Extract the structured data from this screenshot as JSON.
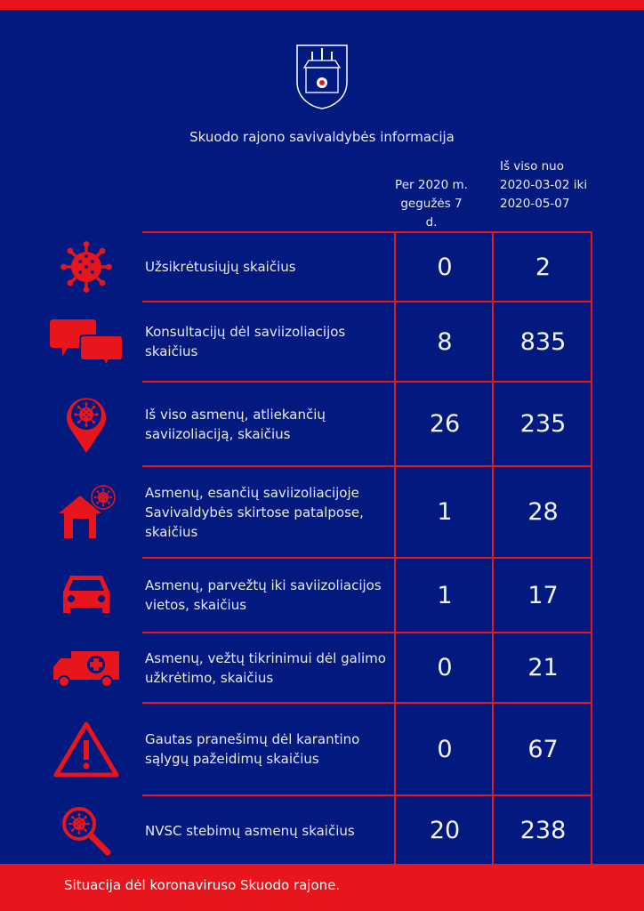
{
  "header": {
    "title": "Skuodo rajono savivaldybės informacija",
    "col1": "Per 2020 m. gegužės 7 d.",
    "col2_line1": "Iš viso nuo",
    "col2_line2": "2020-03-02 iki",
    "col2_line3": "2020-05-07"
  },
  "rows": [
    {
      "icon": "virus-icon",
      "label": "Užsikrėtusiųjų skaičius",
      "day": "0",
      "total": "2"
    },
    {
      "icon": "chat-bubbles-icon",
      "label": "Konsultacijų dėl saviizoliacijos skaičius",
      "day": "8",
      "total": "835"
    },
    {
      "icon": "location-pin-virus-icon",
      "label": "Iš viso asmenų, atliekančių saviizoliaciją, skaičius",
      "day": "26",
      "total": "235"
    },
    {
      "icon": "house-virus-icon",
      "label": "Asmenų, esančių saviizoliacijoje Savivaldybės skirtose patalpose, skaičius",
      "day": "1",
      "total": "28"
    },
    {
      "icon": "car-icon",
      "label": "Asmenų, parvežtų iki saviizoliacijos vietos, skaičius",
      "day": "1",
      "total": "17"
    },
    {
      "icon": "ambulance-icon",
      "label": "Asmenų, vežtų tikrinimui dėl galimo užkrėtimo, skaičius",
      "day": "0",
      "total": "21"
    },
    {
      "icon": "warning-icon",
      "label": "Gautas pranešimų dėl karantino sąlygų pažeidimų skaičius",
      "day": "0",
      "total": "67"
    },
    {
      "icon": "magnifier-virus-icon",
      "label": "NVSC stebimų asmenų skaičius",
      "day": "20",
      "total": "238"
    }
  ],
  "footer": {
    "text": "Situacija dėl koronaviruso Skuodo rajone."
  },
  "colors": {
    "background": "#021a80",
    "accent": "#e8161c"
  }
}
